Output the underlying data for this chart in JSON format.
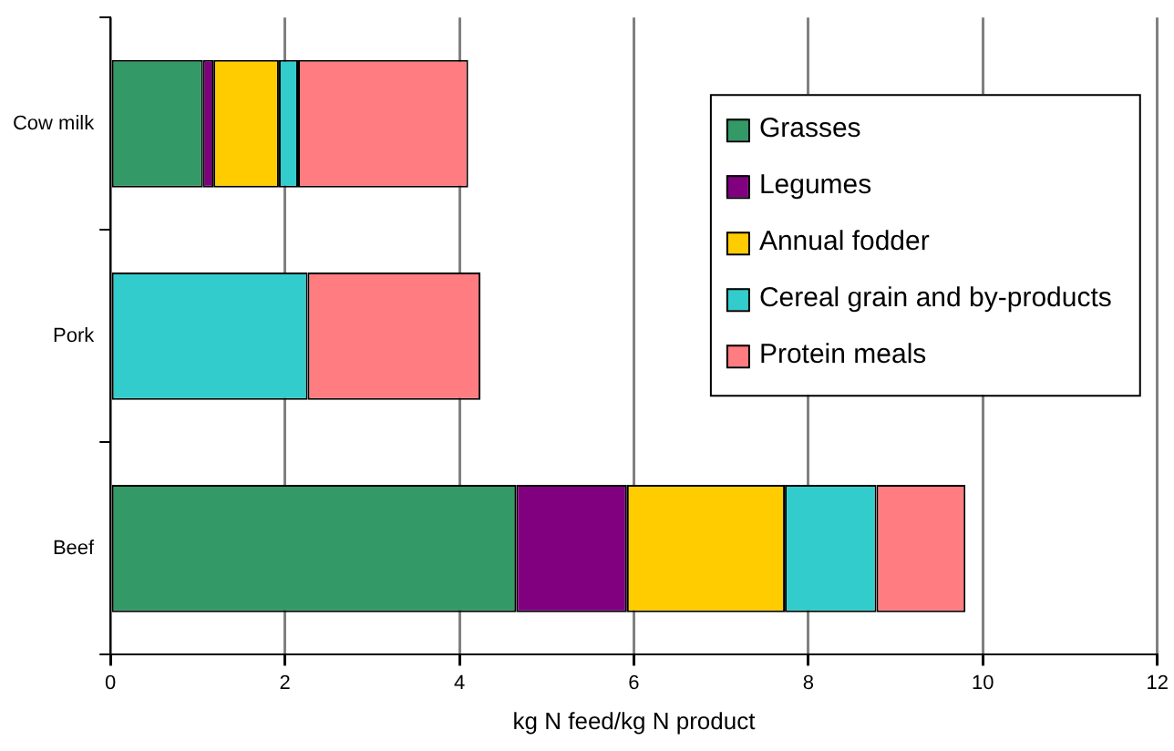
{
  "chart_data": {
    "type": "bar",
    "orientation": "horizontal",
    "stacked": true,
    "categories": [
      "Cow milk",
      "Pork",
      "Beef"
    ],
    "series": [
      {
        "name": "Grasses",
        "color": "#339966",
        "values": [
          1.06,
          null,
          4.65
        ]
      },
      {
        "name": "Legumes",
        "color": "#800080",
        "values": [
          0.12,
          null,
          1.27
        ]
      },
      {
        "name": "Annual fodder",
        "color": "#ffcc00",
        "values": [
          0.75,
          null,
          1.81
        ]
      },
      {
        "name": "Cereal grain and by-products",
        "color": "#33cccc",
        "values": [
          0.22,
          2.26,
          1.05
        ]
      },
      {
        "name": "Protein meals",
        "color": "#ff7c80",
        "values": [
          1.95,
          1.98,
          1.02
        ]
      }
    ],
    "xlabel": "kg N feed/kg N product",
    "xlim": [
      0,
      12
    ],
    "xticks": [
      0,
      2,
      4,
      6,
      8,
      10,
      12
    ],
    "grid": "x",
    "legend": "top right"
  }
}
